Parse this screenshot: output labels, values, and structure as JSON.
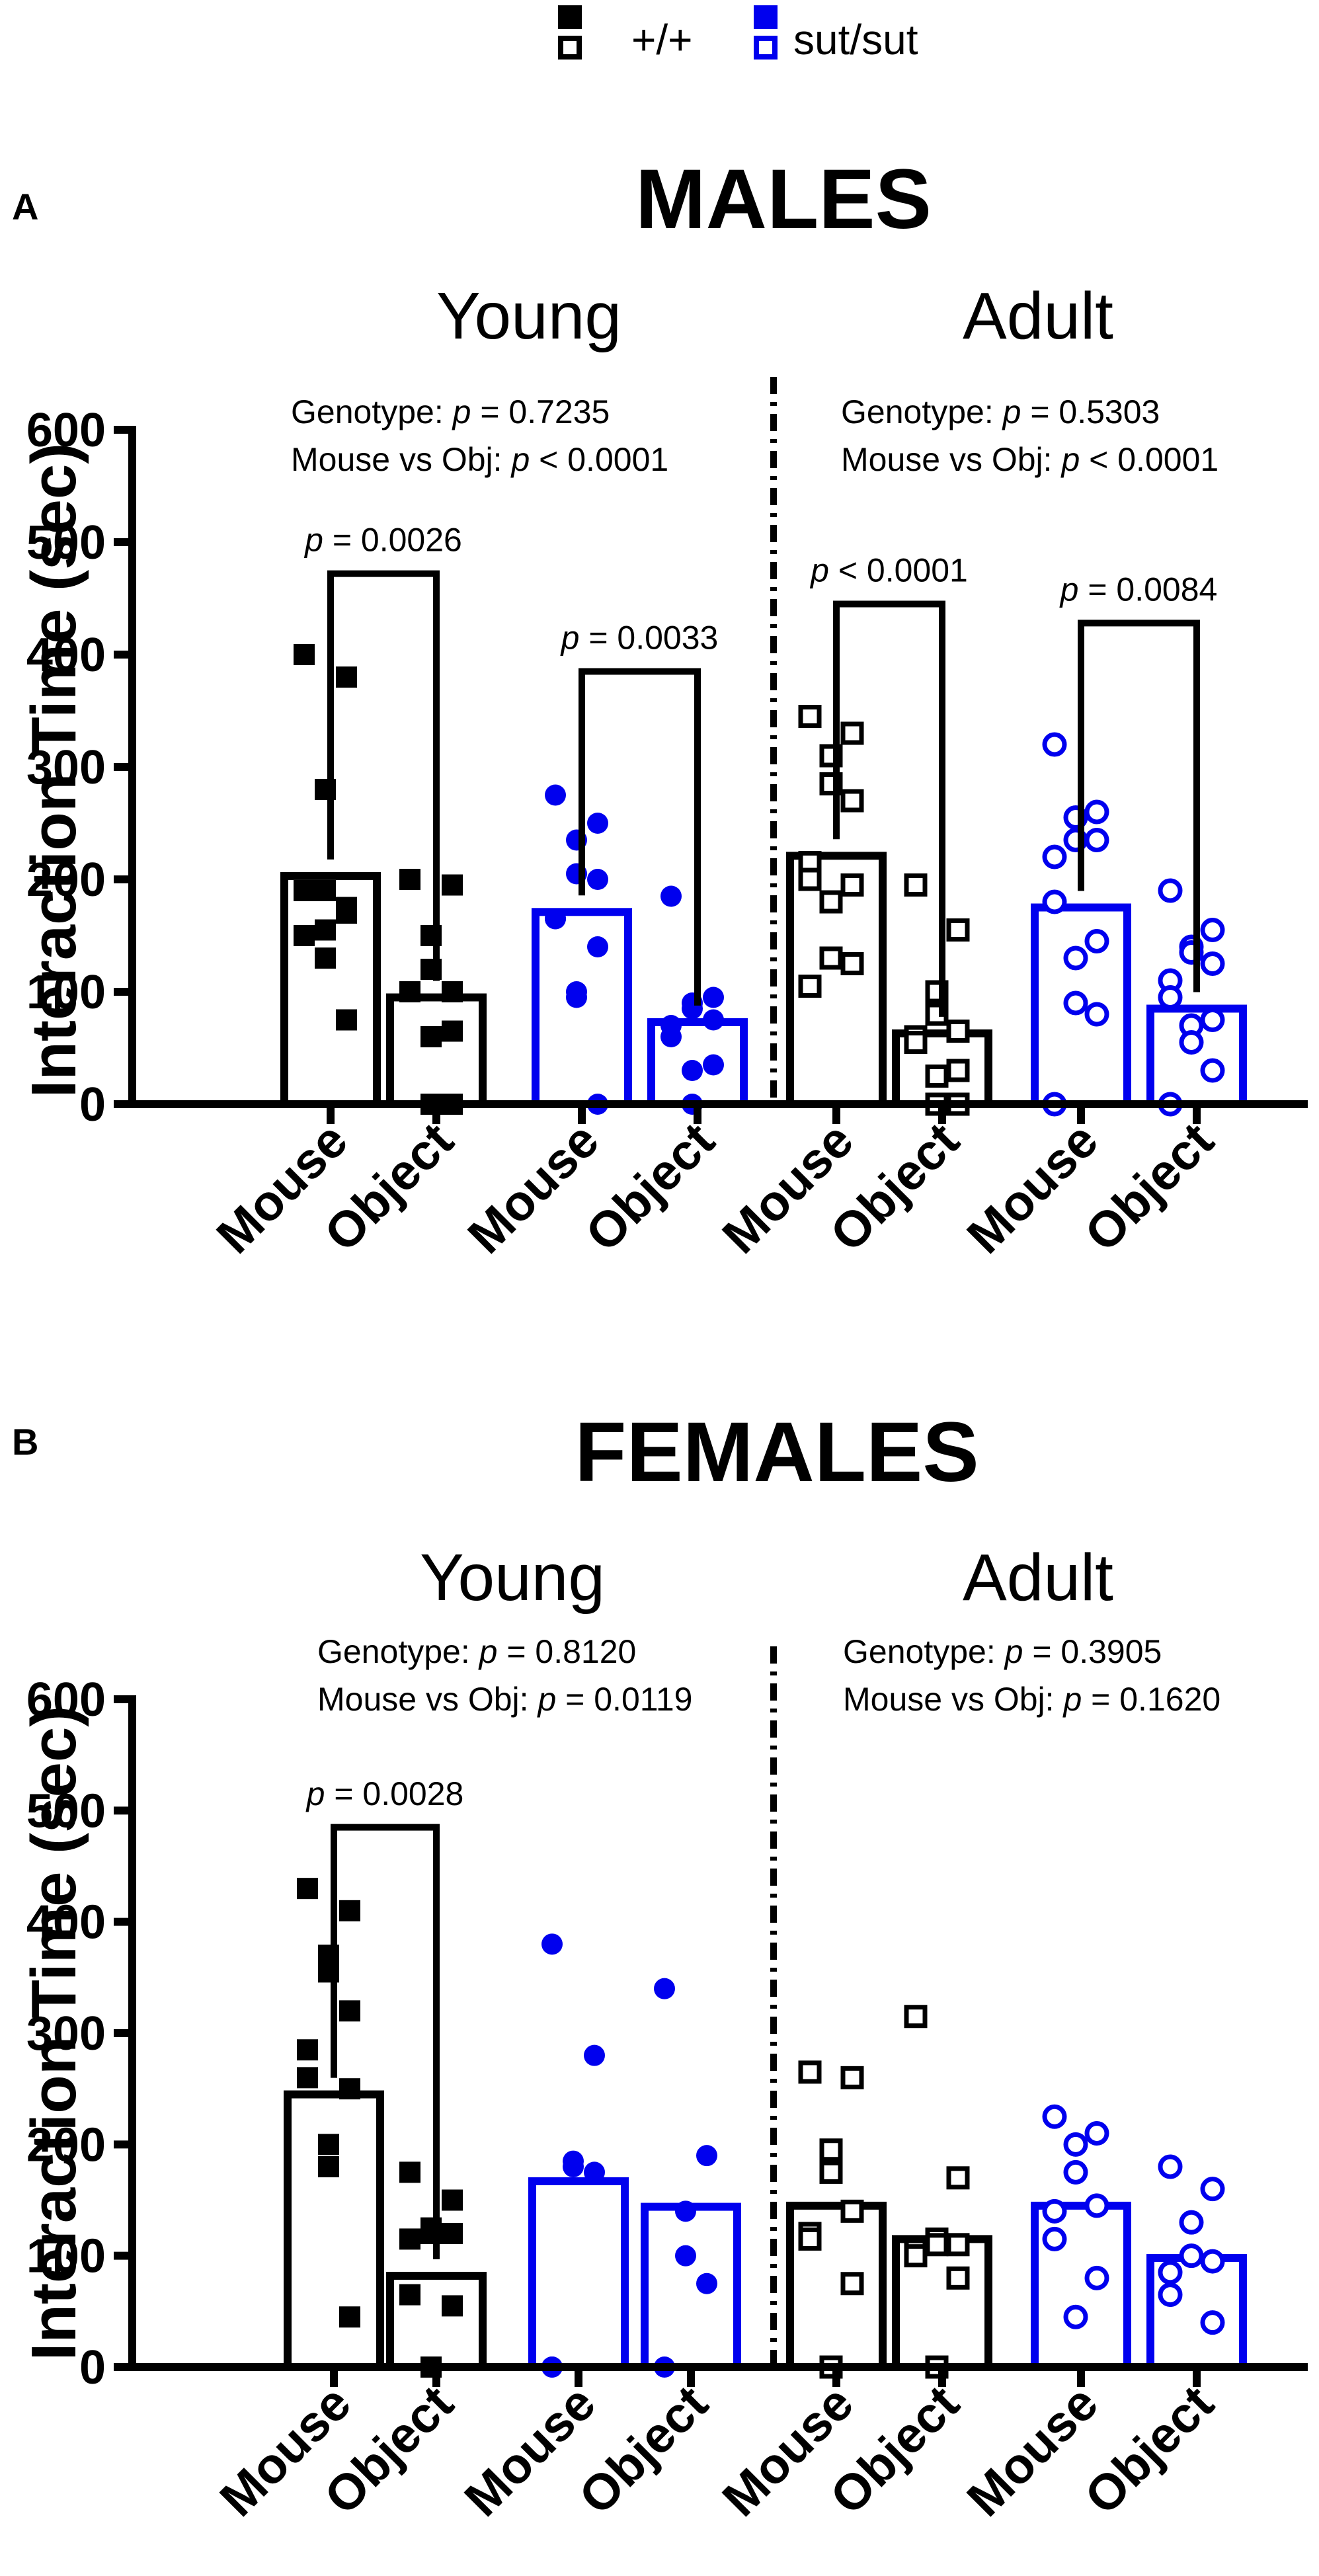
{
  "legend": {
    "wt_label": "+/+",
    "mut_label": "sut/sut",
    "wt_color": "#000000",
    "mut_color": "#0000ee"
  },
  "chart_data": [
    {
      "type": "bar",
      "panel_label": "A",
      "title": "MALES",
      "ylabel": "Interaction Time (sec)",
      "ylim": [
        0,
        600
      ],
      "yticks": [
        "0",
        "100",
        "200",
        "300",
        "400",
        "500",
        "600"
      ],
      "categories": [
        "Mouse",
        "Object",
        "Mouse",
        "Object",
        "Mouse",
        "Object",
        "Mouse",
        "Object"
      ],
      "groups": [
        {
          "name": "Young",
          "stats": {
            "genotype_label": "Genotype: ",
            "genotype_p": " = 0.7235",
            "mvo_label": "Mouse vs Obj: ",
            "mvo_p": " < 0.0001"
          },
          "comparisons": [
            {
              "text": " = 0.0026",
              "bars": [
                0,
                1
              ],
              "top": 472,
              "label_y": 492
            },
            {
              "text": " = 0.0033",
              "bars": [
                2,
                3
              ],
              "top": 385,
              "label_y": 405
            }
          ]
        },
        {
          "name": "Adult",
          "stats": {
            "genotype_label": "Genotype: ",
            "genotype_p": " = 0.5303",
            "mvo_label": "Mouse vs Obj: ",
            "mvo_p": " < 0.0001"
          },
          "comparisons": [
            {
              "text": " < 0.0001",
              "bars": [
                4,
                5
              ],
              "top": 445,
              "label_y": 465
            },
            {
              "text": " = 0.0084",
              "bars": [
                6,
                7
              ],
              "top": 428,
              "label_y": 448
            }
          ]
        }
      ],
      "series": [
        {
          "name": "Young +/+ Mouse",
          "genotype": "+/+",
          "stimulus": "Mouse",
          "mean": 203,
          "points": [
            400,
            380,
            280,
            190,
            170,
            190,
            150,
            175,
            155,
            130,
            75
          ]
        },
        {
          "name": "Young +/+ Object",
          "genotype": "+/+",
          "stimulus": "Object",
          "mean": 95,
          "points": [
            200,
            195,
            150,
            120,
            100,
            100,
            100,
            65,
            60,
            0,
            0
          ]
        },
        {
          "name": "Young sut/sut Mouse",
          "genotype": "sut/sut",
          "stimulus": "Mouse",
          "mean": 171,
          "points": [
            275,
            250,
            235,
            205,
            200,
            165,
            165,
            140,
            100,
            95,
            0
          ]
        },
        {
          "name": "Young sut/sut Object",
          "genotype": "sut/sut",
          "stimulus": "Object",
          "mean": 73,
          "points": [
            185,
            95,
            90,
            85,
            75,
            70,
            60,
            35,
            30,
            0
          ]
        },
        {
          "name": "Adult +/+ Mouse",
          "genotype": "+/+",
          "stimulus": "Mouse",
          "mean": 221,
          "points": [
            345,
            330,
            310,
            285,
            270,
            215,
            200,
            195,
            180,
            130,
            125,
            105
          ]
        },
        {
          "name": "Adult +/+ Object",
          "genotype": "+/+",
          "stimulus": "Object",
          "mean": 63,
          "points": [
            195,
            155,
            100,
            80,
            65,
            60,
            55,
            30,
            25,
            0,
            0
          ]
        },
        {
          "name": "Adult sut/sut Mouse",
          "genotype": "sut/sut",
          "stimulus": "Mouse",
          "mean": 175,
          "points": [
            320,
            260,
            255,
            235,
            235,
            220,
            180,
            145,
            130,
            90,
            80,
            0
          ]
        },
        {
          "name": "Adult sut/sut Object",
          "genotype": "sut/sut",
          "stimulus": "Object",
          "mean": 85,
          "points": [
            190,
            155,
            140,
            135,
            125,
            110,
            95,
            75,
            70,
            55,
            30,
            0
          ]
        }
      ]
    },
    {
      "type": "bar",
      "panel_label": "B",
      "title": "FEMALES",
      "ylabel": "Interaction Time (sec)",
      "ylim": [
        0,
        600
      ],
      "yticks": [
        "0",
        "100",
        "200",
        "300",
        "400",
        "500",
        "600"
      ],
      "categories": [
        "Mouse",
        "Object",
        "Mouse",
        "Object",
        "Mouse",
        "Object",
        "Mouse",
        "Object"
      ],
      "groups": [
        {
          "name": "Young",
          "stats": {
            "genotype_label": "Genotype: ",
            "genotype_p": " = 0.8120",
            "mvo_label": "Mouse vs Obj: ",
            "mvo_p": " = 0.0119"
          },
          "comparisons": [
            {
              "text": " = 0.0028",
              "bars": [
                0,
                1
              ],
              "top": 485,
              "label_y": 505
            }
          ]
        },
        {
          "name": "Adult",
          "stats": {
            "genotype_label": "Genotype: ",
            "genotype_p": " = 0.3905",
            "mvo_label": "Mouse vs Obj: ",
            "mvo_p": " = 0.1620"
          },
          "comparisons": []
        }
      ],
      "series": [
        {
          "name": "Young +/+ Mouse",
          "genotype": "+/+",
          "stimulus": "Mouse",
          "mean": 245,
          "points": [
            430,
            410,
            370,
            355,
            320,
            285,
            260,
            250,
            200,
            180,
            45
          ]
        },
        {
          "name": "Young +/+ Object",
          "genotype": "+/+",
          "stimulus": "Object",
          "mean": 82,
          "points": [
            175,
            150,
            125,
            120,
            120,
            115,
            65,
            55,
            0,
            0
          ]
        },
        {
          "name": "Young sut/sut Mouse",
          "genotype": "sut/sut",
          "stimulus": "Mouse",
          "mean": 167,
          "points": [
            380,
            280,
            185,
            180,
            175,
            0,
            0
          ]
        },
        {
          "name": "Young sut/sut Object",
          "genotype": "sut/sut",
          "stimulus": "Object",
          "mean": 144,
          "points": [
            340,
            190,
            140,
            100,
            75,
            0
          ]
        },
        {
          "name": "Adult +/+ Mouse",
          "genotype": "+/+",
          "stimulus": "Mouse",
          "mean": 145,
          "points": [
            265,
            260,
            195,
            175,
            140,
            120,
            115,
            75,
            0
          ]
        },
        {
          "name": "Adult +/+ Object",
          "genotype": "+/+",
          "stimulus": "Object",
          "mean": 115,
          "points": [
            315,
            170,
            115,
            110,
            110,
            105,
            100,
            80,
            0
          ]
        },
        {
          "name": "Adult sut/sut Mouse",
          "genotype": "sut/sut",
          "stimulus": "Mouse",
          "mean": 145,
          "points": [
            225,
            210,
            200,
            175,
            145,
            140,
            115,
            80,
            45
          ]
        },
        {
          "name": "Adult sut/sut Object",
          "genotype": "sut/sut",
          "stimulus": "Object",
          "mean": 98,
          "points": [
            180,
            160,
            130,
            100,
            95,
            85,
            65,
            40
          ]
        }
      ]
    }
  ]
}
